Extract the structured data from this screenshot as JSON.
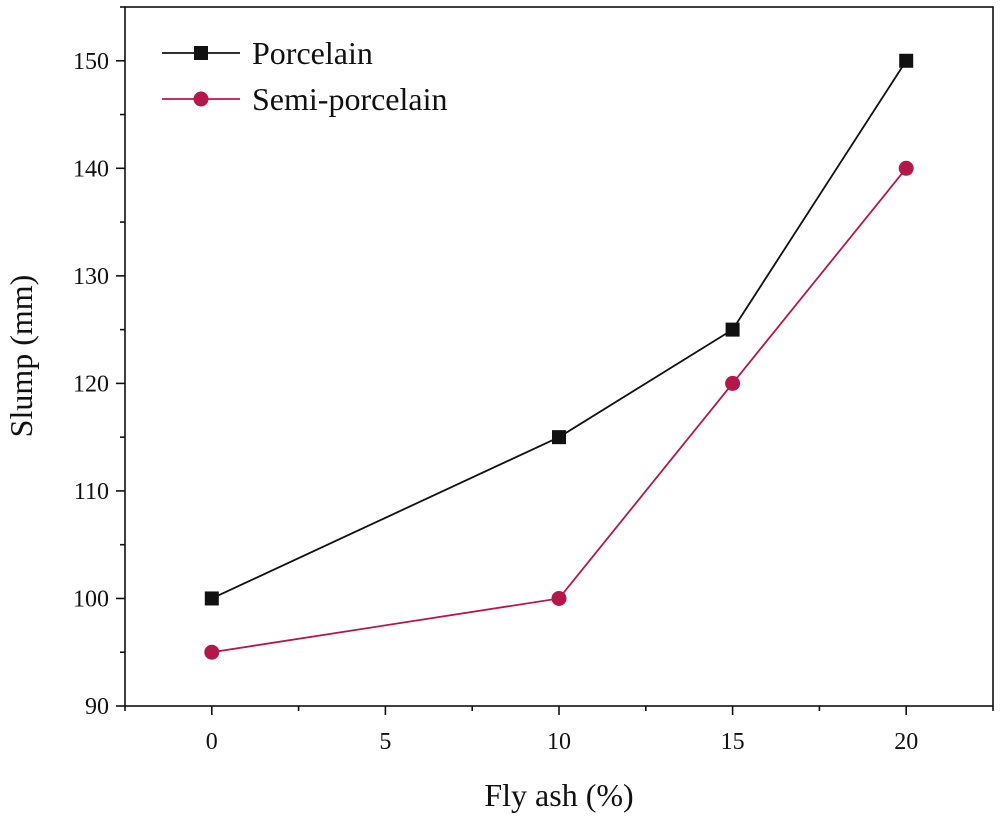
{
  "chart_data": {
    "type": "line",
    "title": "",
    "xlabel": "Fly ash (%)",
    "ylabel": "Slump (mm)",
    "xlim": [
      -2.5,
      22.5
    ],
    "ylim": [
      90,
      155
    ],
    "xticks": [
      0,
      5,
      10,
      15,
      20
    ],
    "yticks": [
      90,
      100,
      110,
      120,
      130,
      140,
      150
    ],
    "grid": false,
    "legend_position": "top-left",
    "series": [
      {
        "name": "Porcelain",
        "marker": "square",
        "color": "#111111",
        "x": [
          0,
          10,
          15,
          20
        ],
        "y": [
          100,
          115,
          125,
          150
        ]
      },
      {
        "name": "Semi-porcelain",
        "marker": "circle",
        "color": "#b5174b",
        "x": [
          0,
          10,
          15,
          20
        ],
        "y": [
          95,
          100,
          120,
          140
        ]
      }
    ]
  }
}
